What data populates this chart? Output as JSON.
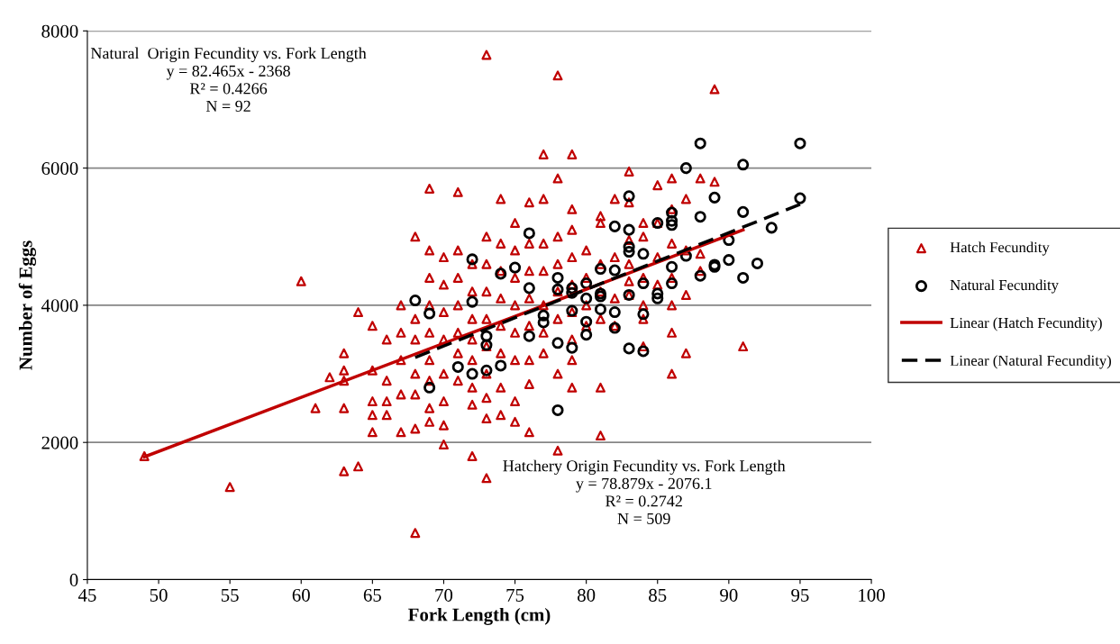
{
  "chart_data": {
    "type": "scatter",
    "xlabel": "Fork Length (cm)",
    "ylabel": "Number of Eggs",
    "xlim": [
      45,
      100
    ],
    "xticks": [
      45,
      50,
      55,
      60,
      65,
      70,
      75,
      80,
      85,
      90,
      95,
      100
    ],
    "ylim": [
      0,
      8000
    ],
    "yticks": [
      0,
      2000,
      4000,
      6000,
      8000
    ],
    "grid": "y",
    "legend": "right",
    "annotations": [
      "Natural  Origin Fecundity vs. Fork Length\ny = 82.465x - 2368\nR² = 0.4266\nN = 92",
      "Hatchery Origin Fecundity vs. Fork Length\ny = 78.879x - 2076.1\nR² = 0.2742\nN = 509"
    ],
    "series": [
      {
        "name": "Hatch Fecundity",
        "marker": "triangle",
        "color": "#c00000",
        "x": [
          49,
          55,
          60,
          61,
          62,
          63,
          63,
          63,
          63,
          63,
          64,
          64,
          65,
          65,
          65,
          65,
          65,
          66,
          66,
          66,
          66,
          67,
          67,
          67,
          67,
          67,
          68,
          68,
          68,
          68,
          68,
          68,
          68,
          69,
          69,
          69,
          69,
          69,
          69,
          69,
          69,
          69,
          70,
          70,
          70,
          70,
          70,
          70,
          70,
          70,
          71,
          71,
          71,
          71,
          71,
          71,
          71,
          72,
          72,
          72,
          72,
          72,
          72,
          72,
          72,
          73,
          73,
          73,
          73,
          73,
          73,
          73,
          73,
          73,
          73,
          74,
          74,
          74,
          74,
          74,
          74,
          74,
          74,
          75,
          75,
          75,
          75,
          75,
          75,
          75,
          75,
          76,
          76,
          76,
          76,
          76,
          76,
          76,
          76,
          77,
          77,
          77,
          77,
          77,
          77,
          77,
          78,
          78,
          78,
          78,
          78,
          78,
          78,
          78,
          79,
          79,
          79,
          79,
          79,
          79,
          79,
          79,
          79,
          80,
          80,
          80,
          80,
          81,
          81,
          81,
          81,
          81,
          81,
          81,
          82,
          82,
          82,
          82,
          83,
          83,
          83,
          83,
          83,
          83,
          84,
          84,
          84,
          84,
          84,
          84,
          85,
          85,
          85,
          85,
          86,
          86,
          86,
          86,
          86,
          86,
          86,
          87,
          87,
          87,
          87,
          88,
          88,
          88,
          89,
          89,
          91
        ],
        "values": [
          1800,
          1350,
          4350,
          2500,
          2950,
          3300,
          2900,
          3050,
          2500,
          1580,
          1650,
          3900,
          3700,
          3050,
          2600,
          2400,
          2150,
          3500,
          2900,
          2600,
          2400,
          4000,
          3600,
          3200,
          2700,
          2150,
          5000,
          3800,
          3500,
          3000,
          2700,
          2200,
          680,
          5700,
          4800,
          4400,
          4000,
          3600,
          3200,
          2900,
          2500,
          2300,
          4700,
          4300,
          3900,
          3500,
          3000,
          2600,
          2250,
          1970,
          5650,
          4800,
          4400,
          4000,
          3600,
          3300,
          2900,
          4600,
          4200,
          3800,
          3500,
          3200,
          2800,
          2550,
          1800,
          7650,
          5000,
          4600,
          4200,
          3800,
          3400,
          3000,
          2650,
          2350,
          1480,
          5550,
          4900,
          4500,
          4100,
          3700,
          3300,
          2800,
          2400,
          5200,
          4800,
          4400,
          4000,
          3600,
          3200,
          2600,
          2300,
          5500,
          4900,
          4500,
          4100,
          3700,
          3200,
          2850,
          2150,
          6200,
          5550,
          4900,
          4500,
          4000,
          3600,
          3300,
          7350,
          5850,
          5000,
          4600,
          4200,
          3800,
          3000,
          1880,
          6200,
          5400,
          5100,
          4700,
          4300,
          3900,
          3500,
          3200,
          2800,
          4800,
          4400,
          4000,
          3700,
          5300,
          5200,
          4600,
          4200,
          3800,
          2800,
          2100,
          5550,
          4700,
          4100,
          3700,
          5950,
          5500,
          4950,
          4600,
          4350,
          4150,
          5200,
          5000,
          4400,
          4000,
          3800,
          3400,
          5750,
          5200,
          4700,
          4300,
          5850,
          5400,
          4900,
          4400,
          4000,
          3600,
          3000,
          5550,
          4800,
          4150,
          3300,
          5850,
          4750,
          4500,
          7150,
          5800,
          3400
        ]
      },
      {
        "name": "Natural Fecundity",
        "marker": "circle",
        "color": "#000000",
        "x": [
          68,
          69,
          69,
          71,
          72,
          72,
          72,
          73,
          73,
          73,
          74,
          74,
          75,
          76,
          76,
          76,
          77,
          77,
          78,
          78,
          78,
          78,
          79,
          79,
          79,
          79,
          80,
          80,
          80,
          80,
          81,
          81,
          81,
          81,
          82,
          82,
          82,
          82,
          83,
          83,
          83,
          83,
          83,
          83,
          84,
          84,
          84,
          84,
          85,
          85,
          85,
          86,
          86,
          86,
          86,
          86,
          87,
          87,
          88,
          88,
          88,
          89,
          89,
          89,
          90,
          90,
          91,
          91,
          91,
          92,
          93,
          95,
          95
        ],
        "values": [
          4070,
          3880,
          2800,
          3100,
          4670,
          4050,
          3000,
          3550,
          3420,
          3050,
          4460,
          3120,
          4550,
          5050,
          4250,
          3550,
          3850,
          3750,
          4400,
          3450,
          4230,
          2470,
          4250,
          4180,
          3920,
          3380,
          4320,
          4100,
          3760,
          3570,
          4530,
          4170,
          4130,
          3940,
          5150,
          4510,
          3900,
          3670,
          5590,
          5100,
          4850,
          4780,
          4150,
          3370,
          4750,
          4320,
          3870,
          3330,
          5200,
          4100,
          4170,
          5350,
          5230,
          5170,
          4560,
          4320,
          6000,
          4720,
          6360,
          5290,
          4430,
          5570,
          4590,
          4560,
          4950,
          4660,
          6050,
          5360,
          4400,
          4610,
          5130,
          6360,
          5560
        ]
      },
      {
        "name": "Linear (Hatch Fecundity)",
        "type": "line",
        "line_style": "solid",
        "color": "#c00000",
        "x": [
          49,
          91
        ],
        "values": [
          1790,
          5100
        ]
      },
      {
        "name": "Linear (Natural Fecundity)",
        "type": "line",
        "line_style": "dashed",
        "color": "#000000",
        "x": [
          68,
          95
        ],
        "values": [
          3240,
          5470
        ]
      }
    ]
  }
}
